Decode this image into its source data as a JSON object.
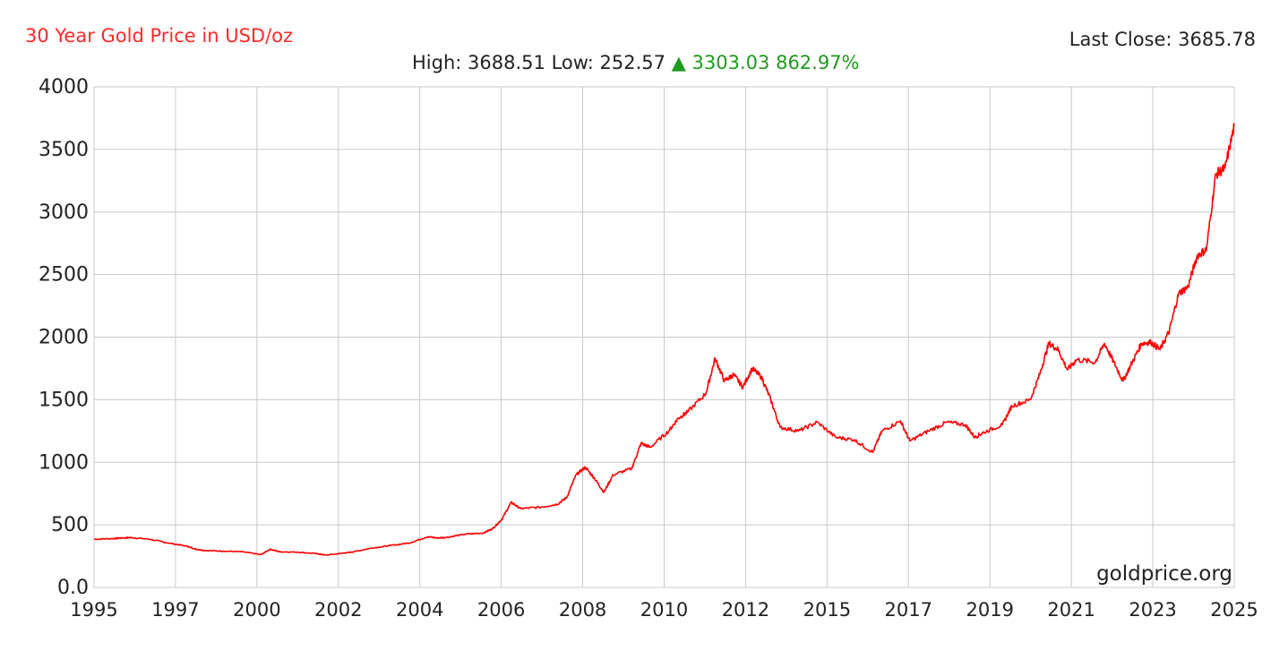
{
  "header": {
    "title": "30 Year Gold Price in USD/oz",
    "last_close_label": "Last Close: 3685.78",
    "high_label": "High:",
    "high_value": "3688.51",
    "low_label": "Low:",
    "low_value": "252.57",
    "change_arrow": "▲",
    "change_value": "3303.03",
    "change_pct": "862.97%"
  },
  "watermark": "goldprice.org",
  "colors": {
    "line": "#ff0000",
    "title": "#ff2a2a",
    "up": "#1f9a1f",
    "grid": "#c8c8c8"
  },
  "chart_data": {
    "type": "line",
    "title": "30 Year Gold Price in USD/oz",
    "xlabel": "",
    "ylabel": "",
    "xlim": [
      1995.0,
      2025.75
    ],
    "ylim": [
      0,
      4000
    ],
    "grid": true,
    "x_tick_labels": [
      "1995",
      "1997",
      "2000",
      "2002",
      "2004",
      "2006",
      "2008",
      "2010",
      "2012",
      "2015",
      "2017",
      "2019",
      "2021",
      "2023",
      "2025"
    ],
    "y_tick_labels": [
      "0.0",
      "500",
      "1000",
      "1500",
      "2000",
      "2500",
      "3000",
      "3500",
      "4000"
    ],
    "y_ticks": [
      0,
      500,
      1000,
      1500,
      2000,
      2500,
      3000,
      3500,
      4000
    ],
    "series": [
      {
        "values": [
          {
            "x": 1995.0,
            "y": 385
          },
          {
            "x": 1995.5,
            "y": 390
          },
          {
            "x": 1995.75,
            "y": 395
          },
          {
            "x": 1996.0,
            "y": 398
          },
          {
            "x": 1996.5,
            "y": 385
          },
          {
            "x": 1997.0,
            "y": 355
          },
          {
            "x": 1997.5,
            "y": 330
          },
          {
            "x": 1997.75,
            "y": 305
          },
          {
            "x": 1998.0,
            "y": 295
          },
          {
            "x": 1998.5,
            "y": 290
          },
          {
            "x": 1999.0,
            "y": 285
          },
          {
            "x": 1999.5,
            "y": 262
          },
          {
            "x": 1999.75,
            "y": 305
          },
          {
            "x": 2000.0,
            "y": 285
          },
          {
            "x": 2000.5,
            "y": 282
          },
          {
            "x": 2001.0,
            "y": 270
          },
          {
            "x": 2001.25,
            "y": 258
          },
          {
            "x": 2001.75,
            "y": 275
          },
          {
            "x": 2002.0,
            "y": 285
          },
          {
            "x": 2002.5,
            "y": 315
          },
          {
            "x": 2003.0,
            "y": 335
          },
          {
            "x": 2003.5,
            "y": 355
          },
          {
            "x": 2004.0,
            "y": 405
          },
          {
            "x": 2004.25,
            "y": 395
          },
          {
            "x": 2004.5,
            "y": 400
          },
          {
            "x": 2005.0,
            "y": 425
          },
          {
            "x": 2005.5,
            "y": 435
          },
          {
            "x": 2005.75,
            "y": 470
          },
          {
            "x": 2006.0,
            "y": 545
          },
          {
            "x": 2006.25,
            "y": 680
          },
          {
            "x": 2006.5,
            "y": 630
          },
          {
            "x": 2007.0,
            "y": 640
          },
          {
            "x": 2007.5,
            "y": 665
          },
          {
            "x": 2007.75,
            "y": 720
          },
          {
            "x": 2008.0,
            "y": 900
          },
          {
            "x": 2008.25,
            "y": 960
          },
          {
            "x": 2008.5,
            "y": 870
          },
          {
            "x": 2008.75,
            "y": 760
          },
          {
            "x": 2009.0,
            "y": 900
          },
          {
            "x": 2009.5,
            "y": 950
          },
          {
            "x": 2009.75,
            "y": 1150
          },
          {
            "x": 2010.0,
            "y": 1120
          },
          {
            "x": 2010.5,
            "y": 1250
          },
          {
            "x": 2010.75,
            "y": 1350
          },
          {
            "x": 2011.0,
            "y": 1400
          },
          {
            "x": 2011.5,
            "y": 1550
          },
          {
            "x": 2011.75,
            "y": 1830
          },
          {
            "x": 2012.0,
            "y": 1650
          },
          {
            "x": 2012.25,
            "y": 1700
          },
          {
            "x": 2012.5,
            "y": 1600
          },
          {
            "x": 2012.75,
            "y": 1750
          },
          {
            "x": 2013.0,
            "y": 1680
          },
          {
            "x": 2013.25,
            "y": 1500
          },
          {
            "x": 2013.5,
            "y": 1280
          },
          {
            "x": 2014.0,
            "y": 1250
          },
          {
            "x": 2014.5,
            "y": 1320
          },
          {
            "x": 2015.0,
            "y": 1200
          },
          {
            "x": 2015.5,
            "y": 1180
          },
          {
            "x": 2016.0,
            "y": 1080
          },
          {
            "x": 2016.25,
            "y": 1250
          },
          {
            "x": 2016.75,
            "y": 1330
          },
          {
            "x": 2017.0,
            "y": 1170
          },
          {
            "x": 2017.5,
            "y": 1250
          },
          {
            "x": 2018.0,
            "y": 1320
          },
          {
            "x": 2018.5,
            "y": 1300
          },
          {
            "x": 2018.75,
            "y": 1200
          },
          {
            "x": 2019.0,
            "y": 1240
          },
          {
            "x": 2019.5,
            "y": 1300
          },
          {
            "x": 2019.75,
            "y": 1450
          },
          {
            "x": 2020.25,
            "y": 1500
          },
          {
            "x": 2020.5,
            "y": 1700
          },
          {
            "x": 2020.75,
            "y": 1950
          },
          {
            "x": 2021.0,
            "y": 1900
          },
          {
            "x": 2021.25,
            "y": 1740
          },
          {
            "x": 2021.5,
            "y": 1820
          },
          {
            "x": 2022.0,
            "y": 1800
          },
          {
            "x": 2022.25,
            "y": 1950
          },
          {
            "x": 2022.5,
            "y": 1800
          },
          {
            "x": 2022.75,
            "y": 1650
          },
          {
            "x": 2023.0,
            "y": 1800
          },
          {
            "x": 2023.25,
            "y": 1950
          },
          {
            "x": 2023.5,
            "y": 1960
          },
          {
            "x": 2023.75,
            "y": 1900
          },
          {
            "x": 2024.0,
            "y": 2050
          },
          {
            "x": 2024.25,
            "y": 2350
          },
          {
            "x": 2024.5,
            "y": 2400
          },
          {
            "x": 2024.75,
            "y": 2650
          },
          {
            "x": 2025.0,
            "y": 2700
          },
          {
            "x": 2025.25,
            "y": 3300
          },
          {
            "x": 2025.5,
            "y": 3350
          },
          {
            "x": 2025.75,
            "y": 3685.78
          }
        ]
      }
    ]
  }
}
